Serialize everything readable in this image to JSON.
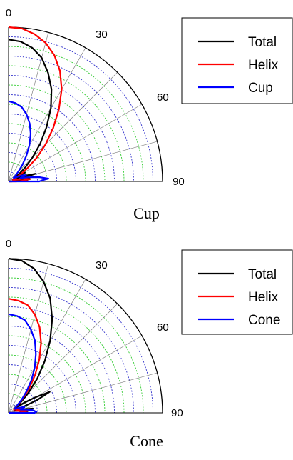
{
  "chart_data": [
    {
      "type": "polar",
      "caption": "Cup",
      "theta_ticks": [
        "0",
        "30",
        "60",
        "90"
      ],
      "theta_range_deg": [
        0,
        90
      ],
      "r_range": [
        0,
        1
      ],
      "grid": true,
      "legend_position": "top-right",
      "series": [
        {
          "name": "Total",
          "color": "#000000",
          "points": [
            [
              0,
              0.92
            ],
            [
              5,
              0.91
            ],
            [
              10,
              0.88
            ],
            [
              15,
              0.83
            ],
            [
              20,
              0.75
            ],
            [
              25,
              0.66
            ],
            [
              30,
              0.55
            ],
            [
              35,
              0.43
            ],
            [
              40,
              0.32
            ],
            [
              45,
              0.22
            ],
            [
              50,
              0.14
            ],
            [
              55,
              0.08
            ],
            [
              58,
              0.05
            ],
            [
              62,
              0.12
            ],
            [
              66,
              0.03
            ],
            [
              70,
              0.1
            ],
            [
              74,
              0.18
            ],
            [
              77,
              0.08
            ],
            [
              80,
              0.14
            ],
            [
              83,
              0.05
            ],
            [
              86,
              0.12
            ],
            [
              88,
              0.04
            ],
            [
              90,
              0.02
            ]
          ]
        },
        {
          "name": "Helix",
          "color": "#ff0000",
          "points": [
            [
              0,
              1.0
            ],
            [
              5,
              0.995
            ],
            [
              10,
              0.97
            ],
            [
              15,
              0.93
            ],
            [
              20,
              0.87
            ],
            [
              25,
              0.79
            ],
            [
              30,
              0.69
            ],
            [
              35,
              0.57
            ],
            [
              40,
              0.45
            ],
            [
              45,
              0.34
            ],
            [
              50,
              0.24
            ],
            [
              55,
              0.15
            ],
            [
              60,
              0.09
            ],
            [
              65,
              0.05
            ],
            [
              70,
              0.03
            ],
            [
              75,
              0.04
            ],
            [
              80,
              0.1
            ],
            [
              84,
              0.14
            ],
            [
              88,
              0.08
            ],
            [
              90,
              0.05
            ]
          ]
        },
        {
          "name": "Cup",
          "color": "#0000ff",
          "points": [
            [
              0,
              0.52
            ],
            [
              5,
              0.51
            ],
            [
              10,
              0.49
            ],
            [
              15,
              0.45
            ],
            [
              20,
              0.4
            ],
            [
              25,
              0.34
            ],
            [
              30,
              0.27
            ],
            [
              35,
              0.2
            ],
            [
              40,
              0.14
            ],
            [
              45,
              0.09
            ],
            [
              50,
              0.06
            ],
            [
              55,
              0.04
            ],
            [
              60,
              0.05
            ],
            [
              65,
              0.09
            ],
            [
              70,
              0.12
            ],
            [
              74,
              0.08
            ],
            [
              78,
              0.13
            ],
            [
              82,
              0.2
            ],
            [
              86,
              0.26
            ],
            [
              88,
              0.22
            ],
            [
              90,
              0.2
            ]
          ]
        }
      ]
    },
    {
      "type": "polar",
      "caption": "Cone",
      "theta_ticks": [
        "0",
        "30",
        "60",
        "90"
      ],
      "theta_range_deg": [
        0,
        90
      ],
      "r_range": [
        0,
        1
      ],
      "grid": true,
      "legend_position": "top-right",
      "series": [
        {
          "name": "Total",
          "color": "#000000",
          "points": [
            [
              0,
              1.0
            ],
            [
              5,
              0.99
            ],
            [
              10,
              0.95
            ],
            [
              15,
              0.88
            ],
            [
              20,
              0.79
            ],
            [
              25,
              0.67
            ],
            [
              30,
              0.54
            ],
            [
              35,
              0.41
            ],
            [
              40,
              0.29
            ],
            [
              45,
              0.18
            ],
            [
              48,
              0.12
            ],
            [
              50,
              0.09
            ],
            [
              53,
              0.05
            ],
            [
              57,
              0.12
            ],
            [
              60,
              0.2
            ],
            [
              63,
              0.3
            ],
            [
              66,
              0.2
            ],
            [
              69,
              0.08
            ],
            [
              72,
              0.04
            ],
            [
              76,
              0.1
            ],
            [
              80,
              0.16
            ],
            [
              83,
              0.08
            ],
            [
              86,
              0.12
            ],
            [
              89,
              0.05
            ],
            [
              90,
              0.04
            ]
          ]
        },
        {
          "name": "Helix",
          "color": "#ff0000",
          "points": [
            [
              0,
              0.74
            ],
            [
              5,
              0.73
            ],
            [
              10,
              0.71
            ],
            [
              15,
              0.66
            ],
            [
              20,
              0.59
            ],
            [
              25,
              0.5
            ],
            [
              30,
              0.4
            ],
            [
              35,
              0.3
            ],
            [
              40,
              0.21
            ],
            [
              45,
              0.13
            ],
            [
              50,
              0.08
            ],
            [
              55,
              0.05
            ],
            [
              60,
              0.04
            ],
            [
              65,
              0.06
            ],
            [
              70,
              0.08
            ],
            [
              75,
              0.05
            ],
            [
              80,
              0.1
            ],
            [
              84,
              0.13
            ],
            [
              87,
              0.08
            ],
            [
              90,
              0.05
            ]
          ]
        },
        {
          "name": "Cone",
          "color": "#0000ff",
          "points": [
            [
              0,
              0.64
            ],
            [
              5,
              0.63
            ],
            [
              10,
              0.61
            ],
            [
              15,
              0.56
            ],
            [
              20,
              0.5
            ],
            [
              25,
              0.42
            ],
            [
              30,
              0.34
            ],
            [
              35,
              0.26
            ],
            [
              40,
              0.18
            ],
            [
              45,
              0.12
            ],
            [
              50,
              0.07
            ],
            [
              55,
              0.05
            ],
            [
              60,
              0.05
            ],
            [
              65,
              0.08
            ],
            [
              70,
              0.11
            ],
            [
              75,
              0.08
            ],
            [
              80,
              0.12
            ],
            [
              84,
              0.16
            ],
            [
              88,
              0.18
            ],
            [
              90,
              0.17
            ]
          ]
        }
      ]
    }
  ]
}
